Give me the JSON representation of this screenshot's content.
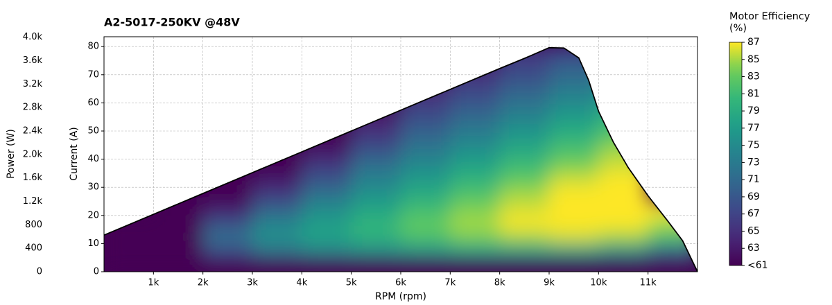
{
  "chart_data": {
    "type": "heatmap",
    "title": "A2-5017-250KV @48V",
    "xlabel": "RPM (rpm)",
    "ylabel": "Current (A)",
    "y2label": "Power (W)",
    "xlim": [
      0,
      12000
    ],
    "ylim": [
      0,
      83.5
    ],
    "y2lim": [
      0,
      4008
    ],
    "xticks": [
      {
        "value": 1000,
        "label": "1k"
      },
      {
        "value": 2000,
        "label": "2k"
      },
      {
        "value": 3000,
        "label": "3k"
      },
      {
        "value": 4000,
        "label": "4k"
      },
      {
        "value": 5000,
        "label": "5k"
      },
      {
        "value": 6000,
        "label": "6k"
      },
      {
        "value": 7000,
        "label": "7k"
      },
      {
        "value": 8000,
        "label": "8k"
      },
      {
        "value": 9000,
        "label": "9k"
      },
      {
        "value": 10000,
        "label": "10k"
      },
      {
        "value": 11000,
        "label": "11k"
      }
    ],
    "yticks": [
      0,
      10,
      20,
      30,
      40,
      50,
      60,
      70,
      80
    ],
    "y2ticks": [
      0,
      400,
      800,
      {
        "value": 1200,
        "label": "1.2k"
      },
      {
        "value": 1600,
        "label": "1.6k"
      },
      {
        "value": 2000,
        "label": "2.0k"
      },
      {
        "value": 2400,
        "label": "2.4k"
      },
      {
        "value": 2800,
        "label": "2.8k"
      },
      {
        "value": 3200,
        "label": "3.2k"
      },
      {
        "value": 3600,
        "label": "3.6k"
      },
      {
        "value": 4000,
        "label": "4.0k"
      }
    ],
    "grid": true,
    "x": [
      500,
      1500,
      2500,
      3500,
      4500,
      5500,
      6500,
      7500,
      8500,
      9500,
      10500,
      11500
    ],
    "y": [
      2.5,
      7.5,
      12.5,
      17.5,
      22.5,
      27.5,
      32.5,
      37.5,
      42.5,
      47.5,
      52.5,
      57.5,
      62.5,
      67.5,
      72.5,
      77.5
    ],
    "z": [
      [
        61,
        61,
        61,
        61,
        61,
        61,
        61,
        61,
        61,
        61,
        61,
        61
      ],
      [
        61,
        61,
        68,
        72,
        74,
        75,
        76,
        77,
        77,
        77,
        75,
        70
      ],
      [
        61,
        61,
        72,
        76,
        78,
        80,
        82,
        84,
        85,
        86,
        85,
        82
      ],
      [
        61,
        61,
        68,
        74,
        77,
        80,
        83,
        85,
        87,
        87,
        87,
        85
      ],
      [
        null,
        61,
        63,
        70,
        75,
        78,
        81,
        84,
        86,
        87,
        87,
        87
      ],
      [
        null,
        61,
        61,
        66,
        72,
        76,
        79,
        82,
        85,
        87,
        87,
        null
      ],
      [
        null,
        null,
        61,
        63,
        69,
        74,
        77,
        80,
        83,
        86,
        87,
        null
      ],
      [
        null,
        null,
        61,
        61,
        66,
        72,
        75,
        78,
        81,
        84,
        86,
        null
      ],
      [
        null,
        null,
        null,
        61,
        63,
        69,
        73,
        76,
        79,
        82,
        85,
        null
      ],
      [
        null,
        null,
        null,
        61,
        61,
        66,
        71,
        74,
        77,
        80,
        83,
        null
      ],
      [
        null,
        null,
        null,
        null,
        61,
        64,
        69,
        72,
        75,
        78,
        81,
        null
      ],
      [
        null,
        null,
        null,
        null,
        null,
        62,
        67,
        70,
        73,
        76,
        79,
        null
      ],
      [
        null,
        null,
        null,
        null,
        null,
        null,
        65,
        68,
        71,
        74,
        77,
        null
      ],
      [
        null,
        null,
        null,
        null,
        null,
        null,
        63,
        66,
        69,
        72,
        75,
        null
      ],
      [
        null,
        null,
        null,
        null,
        null,
        null,
        null,
        64,
        67,
        70,
        73,
        null
      ],
      [
        null,
        null,
        null,
        null,
        null,
        null,
        null,
        null,
        66,
        68,
        71,
        null
      ]
    ],
    "boundary": {
      "color": "#000000",
      "x": [
        0,
        1000,
        2000,
        3000,
        4000,
        5000,
        6000,
        7000,
        8000,
        8500,
        9000,
        9300,
        9600,
        9800,
        10000,
        10300,
        10600,
        11000,
        11400,
        11700,
        12000
      ],
      "y": [
        13,
        20.4,
        27.8,
        35.2,
        42.6,
        50,
        57.4,
        64.8,
        72.2,
        75.8,
        79.6,
        79.5,
        76,
        68,
        57,
        46,
        37,
        27,
        18,
        11,
        0
      ]
    },
    "colorbar": {
      "label": "Motor Efficiency (%)",
      "lim": [
        61,
        87
      ],
      "ticks": [
        {
          "value": 61,
          "label": "<61"
        },
        63,
        65,
        67,
        69,
        71,
        73,
        75,
        77,
        79,
        81,
        83,
        85,
        87
      ]
    }
  }
}
